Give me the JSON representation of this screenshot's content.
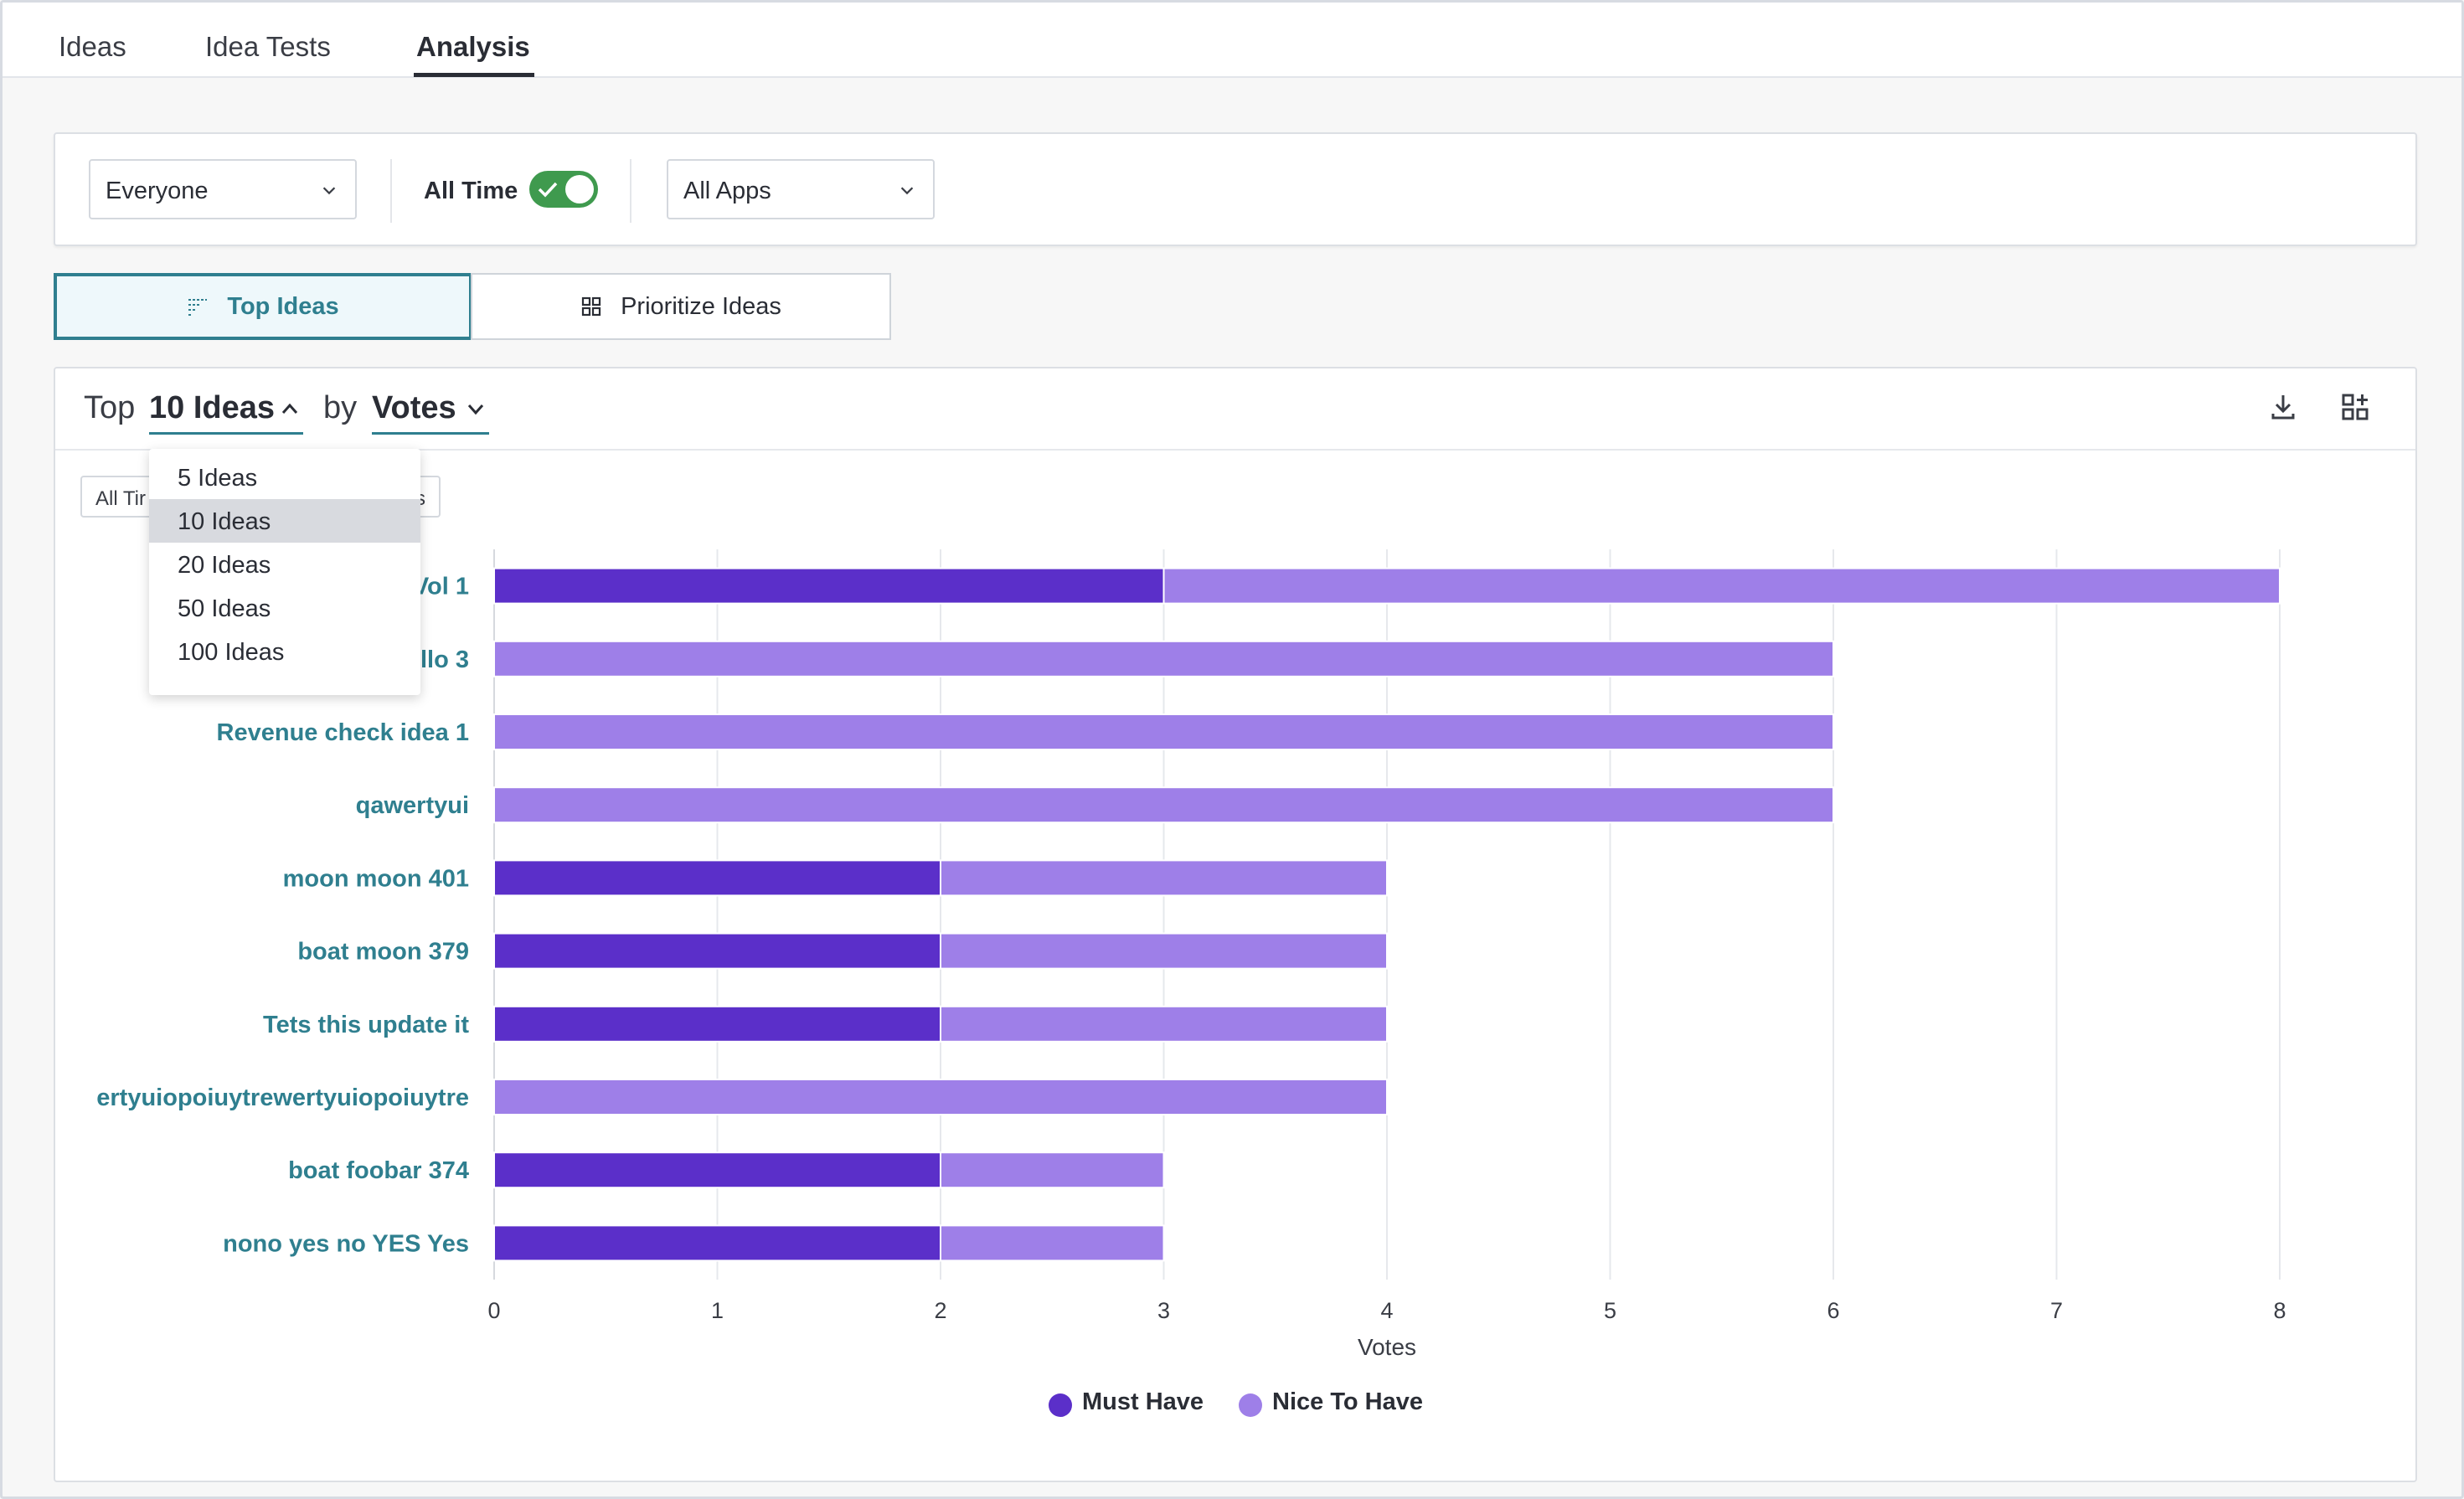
{
  "tabs": [
    {
      "label": "Ideas"
    },
    {
      "label": "Idea Tests"
    },
    {
      "label": "Analysis"
    }
  ],
  "filters": {
    "audience": "Everyone",
    "all_time_label": "All Time",
    "all_time_on": true,
    "apps": "All Apps"
  },
  "view": {
    "top_ideas": "Top Ideas",
    "prioritize_ideas": "Prioritize Ideas"
  },
  "card": {
    "top_word": "Top",
    "count_label": "10 Ideas",
    "by_word": "by",
    "metric_label": "Votes",
    "chip_left": "All Tir",
    "chip_right": "s"
  },
  "menu": {
    "items": [
      "5 Ideas",
      "10 Ideas",
      "20 Ideas",
      "50 Ideas",
      "100 Ideas"
    ],
    "selected": "10 Ideas"
  },
  "colors": {
    "must_have": "#5b2fc9",
    "nice_to_have": "#9e7fe8",
    "label": "#2f7f8f",
    "accent": "#2f7f8f"
  },
  "chart_data": {
    "type": "bar",
    "orientation": "horizontal",
    "stacked": true,
    "categories": [
      "C… Vol 1",
      "…llo 3",
      "Revenue check idea 1",
      "qawertyui",
      "moon moon 401",
      "boat moon 379",
      "Tets this update it",
      "ertyuiopoiuytrewertyuiopoiuytre",
      "boat foobar 374",
      "nono yes no YES Yes"
    ],
    "series": [
      {
        "name": "Must Have",
        "values": [
          3,
          0,
          0,
          0,
          2,
          2,
          2,
          0,
          2,
          2
        ]
      },
      {
        "name": "Nice To Have",
        "values": [
          5,
          6,
          6,
          6,
          2,
          2,
          2,
          4,
          1,
          1
        ]
      }
    ],
    "xlabel": "Votes",
    "xlim": [
      0,
      8
    ],
    "xticks": [
      "0",
      "1",
      "2",
      "3",
      "4",
      "5",
      "6",
      "7",
      "8"
    ],
    "grid": true,
    "legend": "bottom"
  }
}
